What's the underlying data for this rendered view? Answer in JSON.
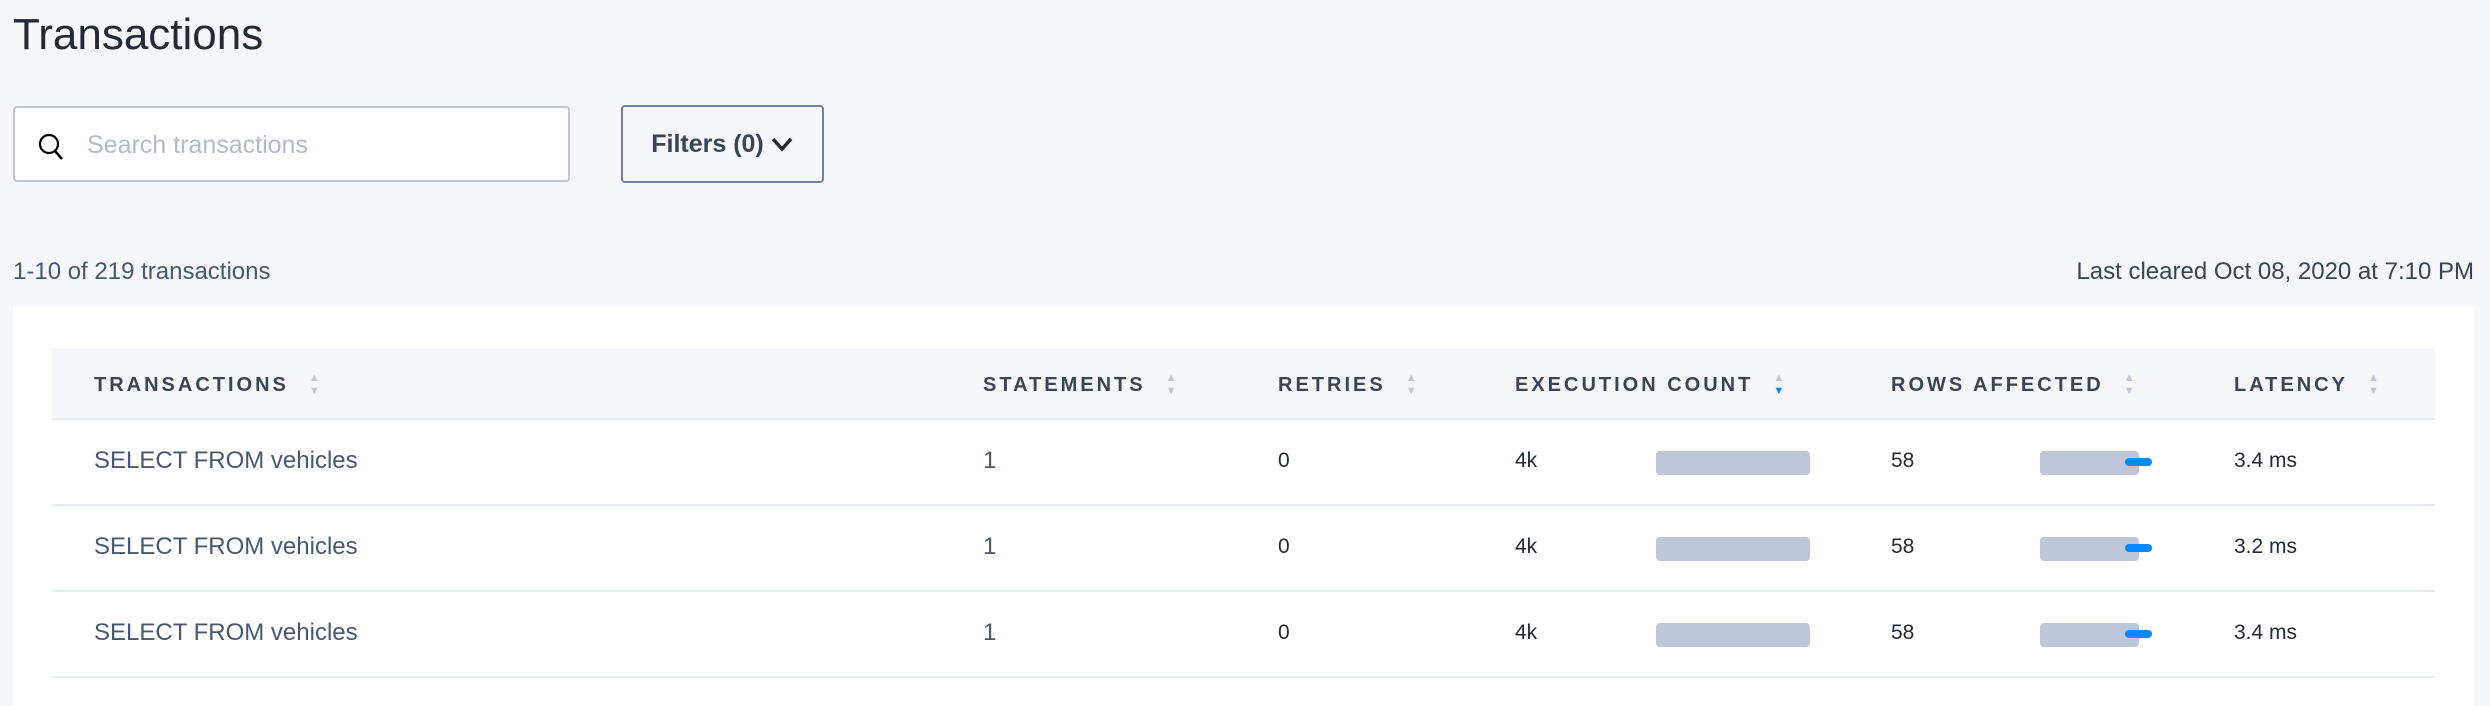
{
  "page_title": "Transactions",
  "search": {
    "placeholder": "Search transactions",
    "value": ""
  },
  "filters_label": "Filters (0)",
  "summary": {
    "count_text": "1-10 of 219 transactions",
    "last_cleared": "Last cleared Oct 08, 2020 at 7:10 PM"
  },
  "table": {
    "columns": [
      {
        "label": "TRANSACTIONS",
        "sort": "none"
      },
      {
        "label": "STATEMENTS",
        "sort": "none"
      },
      {
        "label": "RETRIES",
        "sort": "none"
      },
      {
        "label": "EXECUTION COUNT",
        "sort": "descending"
      },
      {
        "label": "ROWS AFFECTED",
        "sort": "none"
      },
      {
        "label": "LATENCY",
        "sort": "none"
      }
    ],
    "rows": [
      {
        "transaction": "SELECT FROM vehicles",
        "statements": "1",
        "retries": "0",
        "execution_count": "4k",
        "exec_bar_fraction": 1.0,
        "rows_affected": "58",
        "rows_bar_fraction": 0.64,
        "latency": "3.4 ms"
      },
      {
        "transaction": "SELECT FROM vehicles",
        "statements": "1",
        "retries": "0",
        "execution_count": "4k",
        "exec_bar_fraction": 1.0,
        "rows_affected": "58",
        "rows_bar_fraction": 0.64,
        "latency": "3.2 ms"
      },
      {
        "transaction": "SELECT FROM vehicles",
        "statements": "1",
        "retries": "0",
        "execution_count": "4k",
        "exec_bar_fraction": 1.0,
        "rows_affected": "58",
        "rows_bar_fraction": 0.64,
        "latency": "3.4 ms"
      }
    ]
  },
  "colors": {
    "accent": "#0788ff",
    "bar": "#c0c6d9",
    "text": "#394455"
  }
}
